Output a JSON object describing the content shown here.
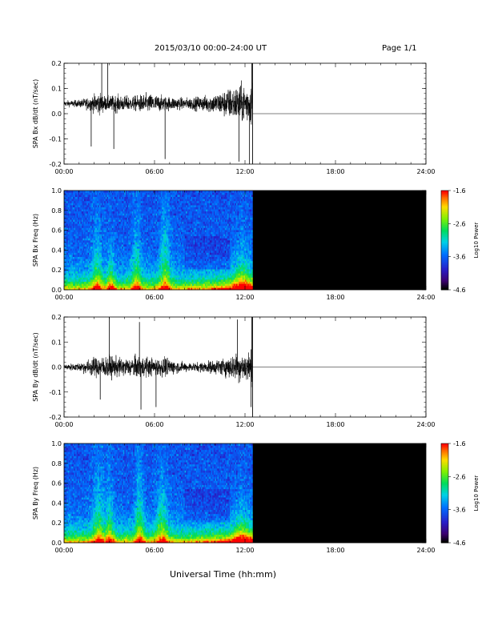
{
  "header": {
    "title": "2015/03/10  00:00–24:00 UT",
    "page": "Page 1/1"
  },
  "xlabel": "Universal Time (hh:mm)",
  "chart_data": [
    {
      "type": "line",
      "ylabel": "SPA Bx dB/dt (nT/sec)",
      "xlim": [
        0,
        24
      ],
      "ylim": [
        -0.2,
        0.2
      ],
      "x_ticks": [
        "00:00",
        "06:00",
        "12:00",
        "18:00",
        "24:00"
      ],
      "y_ticks": [
        "0.2",
        "0.1",
        "0.0",
        "-0.1",
        "-0.2"
      ],
      "data_end_hour": 12.5,
      "baseline": 0.04,
      "envelope": [
        {
          "t": 0.0,
          "amp": 0.02
        },
        {
          "t": 1.0,
          "amp": 0.025
        },
        {
          "t": 1.8,
          "amp": 0.05
        },
        {
          "t": 2.3,
          "amp": 0.08
        },
        {
          "t": 2.8,
          "amp": 0.05
        },
        {
          "t": 3.5,
          "amp": 0.06
        },
        {
          "t": 4.5,
          "amp": 0.05
        },
        {
          "t": 5.5,
          "amp": 0.07
        },
        {
          "t": 6.8,
          "amp": 0.05
        },
        {
          "t": 8.0,
          "amp": 0.04
        },
        {
          "t": 9.0,
          "amp": 0.05
        },
        {
          "t": 10.0,
          "amp": 0.07
        },
        {
          "t": 11.0,
          "amp": 0.11
        },
        {
          "t": 12.0,
          "amp": 0.14
        },
        {
          "t": 12.5,
          "amp": 0.16
        }
      ],
      "spikes": [
        {
          "t": 1.8,
          "v": -0.13
        },
        {
          "t": 2.5,
          "v": 0.2
        },
        {
          "t": 2.9,
          "v": 0.2
        },
        {
          "t": 3.3,
          "v": -0.14
        },
        {
          "t": 6.7,
          "v": -0.18
        },
        {
          "t": 11.6,
          "v": -0.19
        },
        {
          "t": 12.3,
          "v": -0.2
        },
        {
          "t": 12.45,
          "v": 0.2
        }
      ]
    },
    {
      "type": "heatmap",
      "ylabel": "SPA Bx Freq (Hz)",
      "xlim": [
        0,
        24
      ],
      "ylim": [
        0.0,
        1.0
      ],
      "x_ticks": [
        "00:00",
        "06:00",
        "12:00",
        "18:00",
        "24:00"
      ],
      "y_ticks": [
        "1.0",
        "0.8",
        "0.6",
        "0.4",
        "0.2",
        "0.0"
      ],
      "data_end_hour": 12.5,
      "colorbar": {
        "label": "Log10 Power",
        "min": -4.6,
        "max": -1.6,
        "ticks": [
          "-1.6",
          "-2.6",
          "-3.6",
          "-4.6"
        ]
      },
      "bursts": [
        {
          "t": 2.2,
          "width": 0.35,
          "reach": 0.45
        },
        {
          "t": 3.1,
          "width": 0.25,
          "reach": 0.3
        },
        {
          "t": 4.8,
          "width": 0.3,
          "reach": 0.5
        },
        {
          "t": 6.7,
          "width": 0.35,
          "reach": 0.65
        },
        {
          "t": 11.8,
          "width": 0.6,
          "reach": 0.3
        }
      ]
    },
    {
      "type": "line",
      "ylabel": "SPA By dB/dt (nT/sec)",
      "xlim": [
        0,
        24
      ],
      "ylim": [
        -0.2,
        0.2
      ],
      "x_ticks": [
        "00:00",
        "06:00",
        "12:00",
        "18:00",
        "24:00"
      ],
      "y_ticks": [
        "0.2",
        "0.1",
        "0.0",
        "-0.1",
        "-0.2"
      ],
      "data_end_hour": 12.5,
      "baseline": 0.0,
      "envelope": [
        {
          "t": 0.0,
          "amp": 0.02
        },
        {
          "t": 1.0,
          "amp": 0.03
        },
        {
          "t": 2.0,
          "amp": 0.07
        },
        {
          "t": 3.0,
          "amp": 0.08
        },
        {
          "t": 4.0,
          "amp": 0.06
        },
        {
          "t": 5.0,
          "amp": 0.08
        },
        {
          "t": 6.0,
          "amp": 0.06
        },
        {
          "t": 6.8,
          "amp": 0.07
        },
        {
          "t": 7.5,
          "amp": 0.04
        },
        {
          "t": 8.5,
          "amp": 0.03
        },
        {
          "t": 9.5,
          "amp": 0.04
        },
        {
          "t": 10.5,
          "amp": 0.06
        },
        {
          "t": 11.5,
          "amp": 0.1
        },
        {
          "t": 12.5,
          "amp": 0.12
        }
      ],
      "spikes": [
        {
          "t": 3.0,
          "v": 0.2
        },
        {
          "t": 2.4,
          "v": -0.13
        },
        {
          "t": 5.0,
          "v": 0.18
        },
        {
          "t": 5.1,
          "v": -0.17
        },
        {
          "t": 6.1,
          "v": -0.16
        },
        {
          "t": 11.5,
          "v": 0.19
        },
        {
          "t": 12.45,
          "v": 0.2
        },
        {
          "t": 12.4,
          "v": -0.16
        }
      ]
    },
    {
      "type": "heatmap",
      "ylabel": "SPA By Freq (Hz)",
      "xlim": [
        0,
        24
      ],
      "ylim": [
        0.0,
        1.0
      ],
      "x_ticks": [
        "00:00",
        "06:00",
        "12:00",
        "18:00",
        "24:00"
      ],
      "y_ticks": [
        "1.0",
        "0.8",
        "0.6",
        "0.4",
        "0.2",
        "0.0"
      ],
      "data_end_hour": 12.5,
      "colorbar": {
        "label": "Log10 Power",
        "min": -4.6,
        "max": -1.6,
        "ticks": [
          "-1.6",
          "-2.6",
          "-3.6",
          "-4.6"
        ]
      },
      "bursts": [
        {
          "t": 2.3,
          "width": 0.4,
          "reach": 0.55
        },
        {
          "t": 3.0,
          "width": 0.3,
          "reach": 0.45
        },
        {
          "t": 5.0,
          "width": 0.3,
          "reach": 0.6
        },
        {
          "t": 6.5,
          "width": 0.4,
          "reach": 0.5
        },
        {
          "t": 11.8,
          "width": 0.6,
          "reach": 0.25
        }
      ]
    }
  ]
}
